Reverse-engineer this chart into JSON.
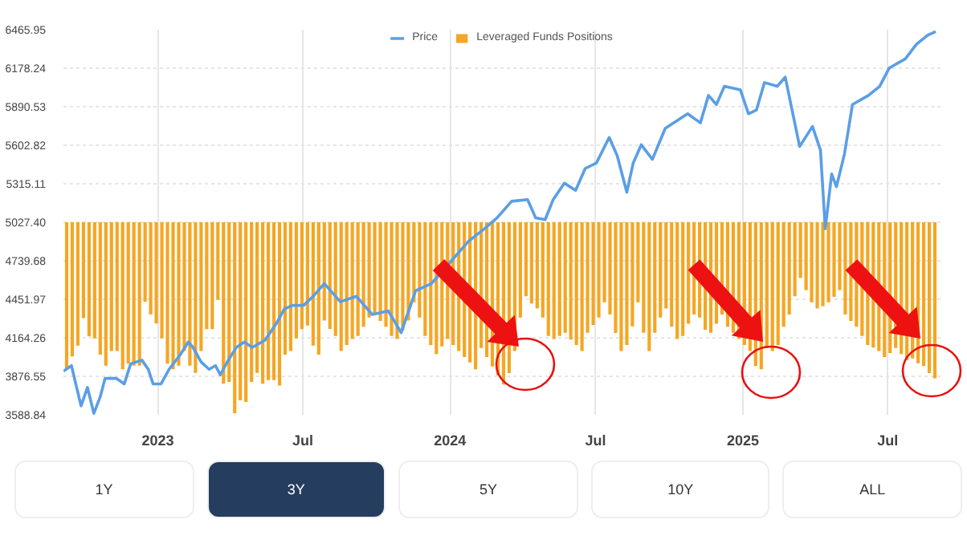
{
  "chart_data": {
    "type": "line",
    "xlim": [
      "2022-09-05",
      "2025-09-05"
    ],
    "ylim": [
      3588.84,
      6465.95
    ],
    "xticks": [
      {
        "value": "2023-01-01",
        "label": "2023"
      },
      {
        "value": "2023-07-01",
        "label": "Jul"
      },
      {
        "value": "2024-01-01",
        "label": "2024"
      },
      {
        "value": "2024-07-01",
        "label": "Jul"
      },
      {
        "value": "2025-01-01",
        "label": "2025"
      },
      {
        "value": "2025-07-01",
        "label": "Jul"
      }
    ],
    "yticks": [
      3588.84,
      3876.55,
      4164.26,
      4451.97,
      4739.68,
      {
        "value": 5027.4,
        "label": "5027.40"
      },
      5315.11,
      5602.82,
      5890.53,
      6178.24,
      6465.95
    ],
    "grid": true,
    "legend": "top",
    "annotations": [
      "1Y",
      "3Y",
      "5Y",
      "10Y",
      "ALL"
    ],
    "series": [
      {
        "name": "Leveraged Funds Positions",
        "type": "bar",
        "color": "#f5a623",
        "x": [
          "2022-09-09",
          "2022-09-16",
          "2022-09-23",
          "2022-09-30",
          "2022-10-07",
          "2022-10-14",
          "2022-10-21",
          "2022-10-28",
          "2022-11-04",
          "2022-11-11",
          "2022-11-18",
          "2022-11-25",
          "2022-12-02",
          "2022-12-09",
          "2022-12-16",
          "2022-12-23",
          "2022-12-30",
          "2023-01-06",
          "2023-01-13",
          "2023-01-20",
          "2023-01-27",
          "2023-02-03",
          "2023-02-10",
          "2023-02-17",
          "2023-02-24",
          "2023-03-03",
          "2023-03-10",
          "2023-03-17",
          "2023-03-24",
          "2023-03-31",
          "2023-04-07",
          "2023-04-14",
          "2023-04-21",
          "2023-04-28",
          "2023-05-05",
          "2023-05-12",
          "2023-05-19",
          "2023-05-26",
          "2023-06-02",
          "2023-06-09",
          "2023-06-16",
          "2023-06-23",
          "2023-06-30",
          "2023-07-07",
          "2023-07-14",
          "2023-07-21",
          "2023-07-28",
          "2023-08-04",
          "2023-08-11",
          "2023-08-18",
          "2023-08-25",
          "2023-09-01",
          "2023-09-08",
          "2023-09-15",
          "2023-09-22",
          "2023-09-29",
          "2023-10-06",
          "2023-10-13",
          "2023-10-20",
          "2023-10-27",
          "2023-11-03",
          "2023-11-10",
          "2023-11-17",
          "2023-11-24",
          "2023-12-01",
          "2023-12-08",
          "2023-12-15",
          "2023-12-22",
          "2023-12-29",
          "2024-01-05",
          "2024-01-12",
          "2024-01-19",
          "2024-01-26",
          "2024-02-02",
          "2024-02-09",
          "2024-02-16",
          "2024-02-23",
          "2024-03-01",
          "2024-03-08",
          "2024-03-15",
          "2024-03-22",
          "2024-03-29",
          "2024-04-05",
          "2024-04-12",
          "2024-04-19",
          "2024-04-26",
          "2024-05-03",
          "2024-05-10",
          "2024-05-17",
          "2024-05-24",
          "2024-05-31",
          "2024-06-07",
          "2024-06-14",
          "2024-06-21",
          "2024-06-28",
          "2024-07-05",
          "2024-07-12",
          "2024-07-19",
          "2024-07-26",
          "2024-08-02",
          "2024-08-09",
          "2024-08-16",
          "2024-08-23",
          "2024-08-30",
          "2024-09-06",
          "2024-09-13",
          "2024-09-20",
          "2024-09-27",
          "2024-10-04",
          "2024-10-11",
          "2024-10-18",
          "2024-10-25",
          "2024-11-01",
          "2024-11-08",
          "2024-11-15",
          "2024-11-22",
          "2024-11-29",
          "2024-12-06",
          "2024-12-13",
          "2024-12-20",
          "2024-12-27",
          "2025-01-03",
          "2025-01-10",
          "2025-01-17",
          "2025-01-24",
          "2025-01-31",
          "2025-02-07",
          "2025-02-14",
          "2025-02-21",
          "2025-02-28",
          "2025-03-07",
          "2025-03-14",
          "2025-03-21",
          "2025-03-28",
          "2025-04-04",
          "2025-04-11",
          "2025-04-18",
          "2025-04-25",
          "2025-05-02",
          "2025-05-09",
          "2025-05-16",
          "2025-05-23",
          "2025-05-30",
          "2025-06-06",
          "2025-06-13",
          "2025-06-20",
          "2025-06-27",
          "2025-07-04",
          "2025-07-11",
          "2025-07-18",
          "2025-07-25",
          "2025-08-01",
          "2025-08-08",
          "2025-08-15",
          "2025-08-22",
          "2025-08-29"
        ],
        "base": [
          5027.4,
          5027.4,
          5027.4,
          5027.4,
          5027.4,
          5027.4,
          5027.4,
          5027.4,
          5027.4,
          5027.4,
          5027.4,
          5027.4,
          5027.4,
          5027.4,
          5027.4,
          5027.4,
          5027.4,
          5027.4,
          5027.4,
          5027.4,
          5027.4,
          5027.4,
          5027.4,
          5027.4,
          5027.4,
          5027.4,
          5027.4,
          5027.4,
          5027.4,
          5027.4,
          5027.4,
          5027.4,
          5027.4,
          5027.4,
          5027.4,
          5027.4,
          5027.4,
          5027.4,
          5027.4,
          5027.4,
          5027.4,
          5027.4,
          5027.4,
          5027.4,
          5027.4,
          5027.4,
          5027.4,
          5027.4,
          5027.4,
          5027.4,
          5027.4,
          5027.4,
          5027.4,
          5027.4,
          5027.4,
          5027.4,
          5027.4,
          5027.4,
          5027.4,
          5027.4,
          5027.4,
          5027.4,
          5027.4,
          5027.4,
          5027.4,
          5027.4,
          5027.4,
          5027.4,
          5027.4,
          5027.4,
          5027.4,
          5027.4,
          5027.4,
          5027.4,
          5027.4,
          5027.4,
          5027.4,
          5027.4,
          5027.4,
          5027.4,
          5027.4,
          5027.4,
          5027.4,
          5027.4,
          5027.4,
          5027.4,
          5027.4,
          5027.4,
          5027.4,
          5027.4,
          5027.4,
          5027.4,
          5027.4,
          5027.4,
          5027.4,
          5027.4,
          5027.4,
          5027.4,
          5027.4,
          5027.4,
          5027.4,
          5027.4,
          5027.4,
          5027.4,
          5027.4,
          5027.4,
          5027.4,
          5027.4,
          5027.4,
          5027.4,
          5027.4,
          5027.4,
          5027.4,
          5027.4,
          5027.4,
          5027.4,
          5027.4,
          5027.4,
          5027.4,
          5027.4,
          5027.4,
          5027.4,
          5027.4,
          5027.4,
          5027.4,
          5027.4,
          5027.4,
          5027.4,
          5027.4,
          5027.4,
          5027.4,
          5027.4,
          5027.4,
          5027.4,
          5027.4,
          5027.4,
          5027.4,
          5027.4,
          5027.4,
          5027.4,
          5027.4,
          5027.4,
          5027.4,
          5027.4,
          5027.4,
          5027.4,
          5027.4,
          5027.4,
          5027.4,
          5027.4,
          5027.4,
          5027.4,
          5027.4,
          5027.4,
          5027.4,
          5027.4
        ],
        "values": [
          -1098,
          -1003,
          -921,
          -716,
          -853,
          -867,
          -989,
          -1071,
          -962,
          -962,
          -1098,
          -1057,
          -1071,
          -1071,
          -594,
          -689,
          -757,
          -867,
          -1057,
          -1098,
          -1071,
          -962,
          -1071,
          -1125,
          -962,
          -798,
          -798,
          -580,
          -1207,
          -1193,
          -1427,
          -1330,
          -1343,
          -1193,
          -1125,
          -1207,
          -1179,
          -1179,
          -1220,
          -989,
          -962,
          -867,
          -798,
          -771,
          -921,
          -989,
          -734,
          -797,
          -849,
          -962,
          -917,
          -872,
          -849,
          -781,
          -712,
          -689,
          -737,
          -781,
          -849,
          -872,
          -807,
          -734,
          -598,
          -712,
          -849,
          -917,
          -985,
          -927,
          -872,
          -917,
          -962,
          -1007,
          -1047,
          -1098,
          -940,
          -1007,
          -1077,
          -1143,
          -1212,
          -1127,
          -962,
          -712,
          -553,
          -607,
          -644,
          -712,
          -849,
          -872,
          -849,
          -826,
          -877,
          -917,
          -962,
          -826,
          -767,
          -712,
          -598,
          -689,
          -827,
          -962,
          -917,
          -777,
          -598,
          -826,
          -962,
          -826,
          -712,
          -644,
          -781,
          -872,
          -849,
          -758,
          -689,
          -712,
          -803,
          -826,
          -758,
          -689,
          -781,
          -826,
          -872,
          -917,
          -962,
          -1075,
          -1098,
          -940,
          -962,
          -917,
          -781,
          -689,
          -553,
          -416,
          -507,
          -598,
          -644,
          -627,
          -598,
          -557,
          -507,
          -689,
          -737,
          -781,
          -849,
          -917,
          -937,
          -962,
          -1007,
          -977,
          -940,
          -985,
          -1030,
          -1017,
          -1053,
          -1075,
          -1127,
          -1166
        ]
      },
      {
        "name": "Price",
        "color": "#5b9ee6",
        "x": [
          "2022-09-05",
          "2022-09-15",
          "2022-09-27",
          "2022-10-05",
          "2022-10-13",
          "2022-10-21",
          "2022-10-27",
          "2022-11-10",
          "2022-11-20",
          "2022-11-28",
          "2022-12-12",
          "2022-12-20",
          "2022-12-26",
          "2023-01-05",
          "2023-01-15",
          "2023-01-29",
          "2023-02-08",
          "2023-02-14",
          "2023-02-24",
          "2023-03-06",
          "2023-03-14",
          "2023-03-20",
          "2023-03-30",
          "2023-04-09",
          "2023-04-19",
          "2023-04-29",
          "2023-05-15",
          "2023-05-29",
          "2023-06-08",
          "2023-06-18",
          "2023-07-02",
          "2023-07-14",
          "2023-07-28",
          "2023-08-17",
          "2023-09-06",
          "2023-09-26",
          "2023-10-16",
          "2023-11-01",
          "2023-11-19",
          "2023-12-09",
          "2024-01-04",
          "2024-01-24",
          "2024-02-13",
          "2024-02-29",
          "2024-03-18",
          "2024-04-07",
          "2024-04-17",
          "2024-04-29",
          "2024-05-09",
          "2024-05-23",
          "2024-06-06",
          "2024-06-18",
          "2024-07-02",
          "2024-07-18",
          "2024-07-28",
          "2024-08-09",
          "2024-08-17",
          "2024-08-27",
          "2024-09-10",
          "2024-09-26",
          "2024-10-24",
          "2024-11-09",
          "2024-11-19",
          "2024-11-29",
          "2024-12-09",
          "2024-12-29",
          "2025-01-08",
          "2025-01-18",
          "2025-01-28",
          "2025-02-13",
          "2025-02-23",
          "2025-03-13",
          "2025-03-29",
          "2025-04-08",
          "2025-04-14",
          "2025-04-22",
          "2025-04-28",
          "2025-05-08",
          "2025-05-18",
          "2025-06-07",
          "2025-06-21",
          "2025-07-03",
          "2025-07-23",
          "2025-08-06",
          "2025-08-20",
          "2025-08-30"
        ],
        "values": [
          3915,
          3956,
          3656,
          3793,
          3600,
          3724,
          3861,
          3861,
          3820,
          3970,
          3997,
          3929,
          3820,
          3820,
          3929,
          4038,
          4133,
          4092,
          3984,
          3929,
          3956,
          3888,
          3997,
          4092,
          4133,
          4092,
          4147,
          4270,
          4379,
          4406,
          4406,
          4474,
          4570,
          4433,
          4474,
          4338,
          4365,
          4202,
          4515,
          4570,
          4747,
          4884,
          4979,
          5061,
          5184,
          5197,
          5061,
          5047,
          5197,
          5320,
          5266,
          5429,
          5470,
          5661,
          5525,
          5252,
          5470,
          5606,
          5497,
          5729,
          5838,
          5770,
          5975,
          5907,
          6043,
          6016,
          5838,
          5866,
          6071,
          6043,
          6111,
          5593,
          5743,
          5566,
          4979,
          5388,
          5293,
          5538,
          5907,
          5975,
          6043,
          6180,
          6248,
          6357,
          6425,
          6452
        ]
      }
    ]
  }
}
